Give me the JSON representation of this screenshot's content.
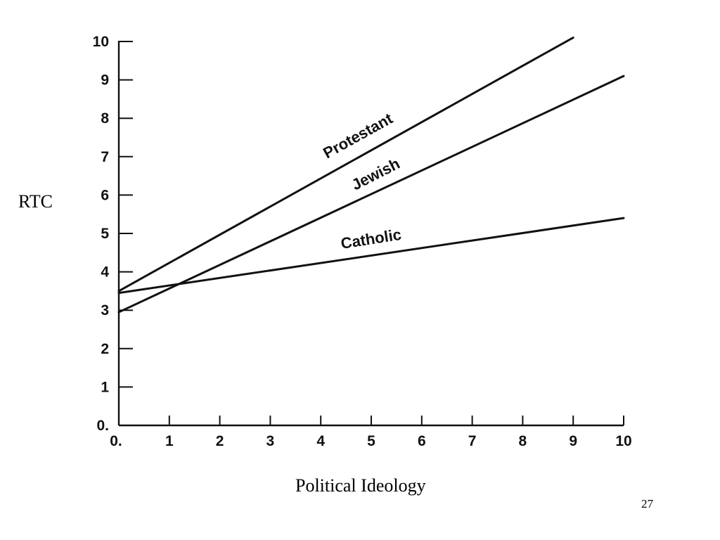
{
  "chart_data": {
    "type": "line",
    "xlabel": "Political Ideology",
    "ylabel": "RTC",
    "xlim": [
      0,
      10
    ],
    "ylim": [
      0,
      10
    ],
    "x_ticks": [
      "0.",
      "1",
      "2",
      "3",
      "4",
      "5",
      "6",
      "7",
      "8",
      "9",
      "10"
    ],
    "y_ticks": [
      "0.",
      "1",
      "2",
      "3",
      "4",
      "5",
      "6",
      "7",
      "8",
      "9",
      "10"
    ],
    "grid": false,
    "legend": "none",
    "series": [
      {
        "name": "Protestant",
        "x": [
          0,
          9
        ],
        "y": [
          3.5,
          10.1
        ]
      },
      {
        "name": "Jewish",
        "x": [
          0,
          10
        ],
        "y": [
          2.95,
          9.1
        ]
      },
      {
        "name": "Catholic",
        "x": [
          0,
          10
        ],
        "y": [
          3.45,
          5.4
        ]
      }
    ],
    "line_color": "#111111"
  },
  "slide": {
    "number": "27"
  }
}
